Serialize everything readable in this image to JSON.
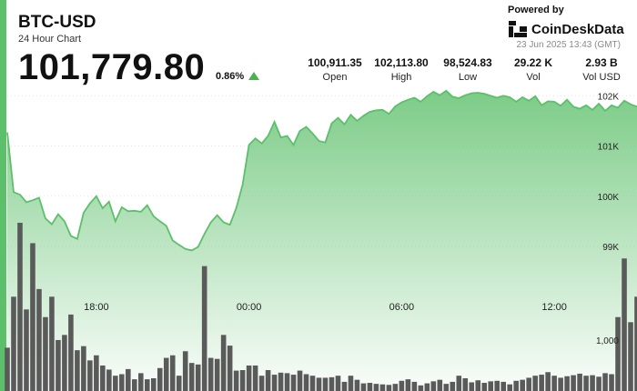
{
  "header": {
    "title": "BTC-USD",
    "subtitle": "24 Hour Chart",
    "price": "101,779.80",
    "change": "0.86%"
  },
  "branding": {
    "powered_by": "Powered by",
    "brand_name": "CoinDeskData",
    "timestamp": "23 Jun 2025 13:43 (GMT)",
    "logo_icon": "coindesk-logo-icon"
  },
  "stats": [
    {
      "value": "100,911.35",
      "label": "Open"
    },
    {
      "value": "102,113.80",
      "label": "High"
    },
    {
      "value": "98,524.83",
      "label": "Low"
    },
    {
      "value": "29.22 K",
      "label": "Vol"
    },
    {
      "value": "2.93 B",
      "label": "Vol USD"
    }
  ],
  "colors": {
    "accent": "#4caf50",
    "line": "#5cbf6a",
    "volume_bar": "#5a5a5a"
  },
  "chart_data": {
    "type": "area",
    "x_ticks": [
      {
        "label": "18:00",
        "index": 14
      },
      {
        "label": "00:00",
        "index": 38
      },
      {
        "label": "06:00",
        "index": 62
      },
      {
        "label": "12:00",
        "index": 86
      }
    ],
    "y_ticks": [
      "102K",
      "101K",
      "100K",
      "99K"
    ],
    "y_tick_values": [
      102000,
      101000,
      100000,
      99000
    ],
    "volume_tick": "1,000",
    "volume_tick_value": 1000,
    "ylim": [
      98330,
      102150
    ],
    "volume_max": 3300,
    "price": [
      101270,
      100080,
      100030,
      99880,
      99920,
      99970,
      99560,
      99440,
      99640,
      99500,
      99210,
      99150,
      99670,
      99860,
      100000,
      99760,
      99890,
      99500,
      99780,
      99700,
      99710,
      99690,
      99820,
      99600,
      99500,
      99410,
      99120,
      99030,
      98950,
      98920,
      98990,
      99250,
      99480,
      99620,
      99480,
      99430,
      99760,
      100230,
      101020,
      101150,
      101050,
      101200,
      101480,
      101170,
      101200,
      101020,
      101300,
      101380,
      101250,
      101100,
      101070,
      101450,
      101560,
      101430,
      101620,
      101500,
      101600,
      101680,
      101710,
      101720,
      101640,
      101790,
      101870,
      101920,
      101960,
      101880,
      101990,
      102080,
      102010,
      102100,
      101980,
      101950,
      102010,
      102050,
      102060,
      102040,
      102000,
      101960,
      102000,
      101970,
      101880,
      101970,
      101900,
      101990,
      101810,
      101890,
      101880,
      101800,
      101920,
      101780,
      101740,
      101810,
      101720,
      101840,
      101700,
      101810,
      101760,
      101900,
      101830,
      101780
    ],
    "volume": [
      850,
      1850,
      3300,
      1600,
      2900,
      2000,
      1450,
      1850,
      1000,
      1100,
      1500,
      800,
      880,
      600,
      700,
      500,
      420,
      300,
      330,
      430,
      230,
      350,
      230,
      250,
      450,
      650,
      700,
      300,
      780,
      550,
      520,
      2450,
      650,
      630,
      1100,
      890,
      400,
      410,
      500,
      500,
      300,
      410,
      320,
      360,
      350,
      320,
      400,
      330,
      300,
      260,
      260,
      270,
      300,
      180,
      300,
      220,
      150,
      160,
      140,
      130,
      120,
      140,
      200,
      230,
      180,
      110,
      150,
      190,
      220,
      140,
      180,
      300,
      250,
      170,
      210,
      160,
      190,
      200,
      180,
      130,
      200,
      220,
      260,
      300,
      320,
      370,
      300,
      260,
      290,
      310,
      340,
      300,
      310,
      280,
      350,
      330,
      1450,
      2600,
      1350,
      1850
    ]
  }
}
